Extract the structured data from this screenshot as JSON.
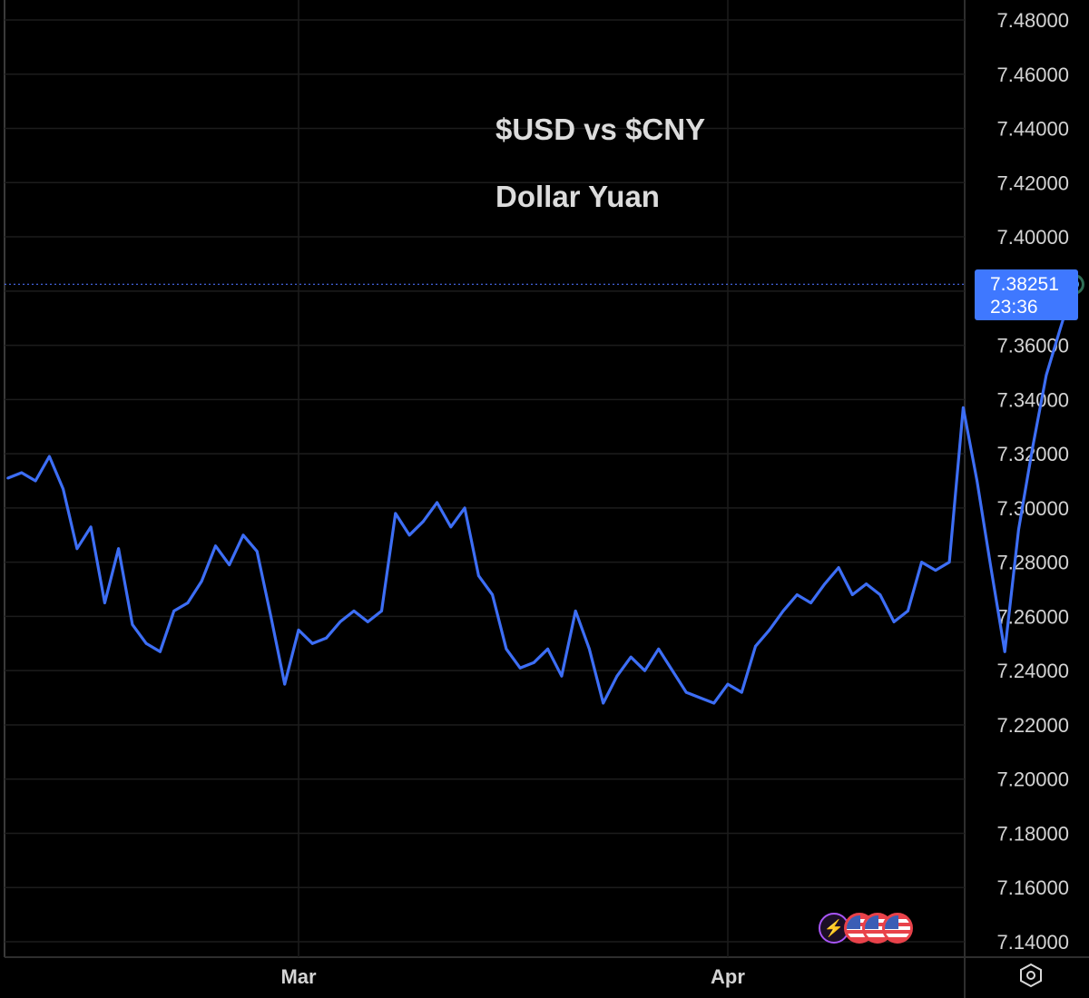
{
  "chart_data": {
    "type": "line",
    "title": "$USD vs $CNY",
    "subtitle": "Dollar Yuan",
    "ylim": [
      7.13,
      7.49
    ],
    "y_ticks": [
      "7.48000",
      "7.46000",
      "7.44000",
      "7.42000",
      "7.40000",
      "7.38000",
      "7.36000",
      "7.34000",
      "7.32000",
      "7.30000",
      "7.28000",
      "7.26000",
      "7.24000",
      "7.22000",
      "7.20000",
      "7.18000",
      "7.16000",
      "7.14000"
    ],
    "y_tick_values": [
      7.48,
      7.46,
      7.44,
      7.42,
      7.4,
      7.38,
      7.36,
      7.34,
      7.32,
      7.3,
      7.28,
      7.26,
      7.24,
      7.22,
      7.2,
      7.18,
      7.16,
      7.14
    ],
    "x_tick_labels": [
      "Mar",
      "Apr"
    ],
    "x_tick_dates": [
      "2025-03-01",
      "2025-04-01"
    ],
    "series": [
      {
        "color": "#3d6ef5",
        "points": [
          [
            "2025-02-08",
            7.311
          ],
          [
            "2025-02-09",
            7.313
          ],
          [
            "2025-02-10",
            7.31
          ],
          [
            "2025-02-11",
            7.319
          ],
          [
            "2025-02-12",
            7.307
          ],
          [
            "2025-02-13",
            7.285
          ],
          [
            "2025-02-14",
            7.293
          ],
          [
            "2025-02-15",
            7.265
          ],
          [
            "2025-02-16",
            7.285
          ],
          [
            "2025-02-17",
            7.257
          ],
          [
            "2025-02-18",
            7.25
          ],
          [
            "2025-02-19",
            7.247
          ],
          [
            "2025-02-20",
            7.262
          ],
          [
            "2025-02-21",
            7.265
          ],
          [
            "2025-02-22",
            7.273
          ],
          [
            "2025-02-23",
            7.286
          ],
          [
            "2025-02-24",
            7.279
          ],
          [
            "2025-02-25",
            7.29
          ],
          [
            "2025-02-26",
            7.284
          ],
          [
            "2025-02-27",
            7.26
          ],
          [
            "2025-02-28",
            7.235
          ],
          [
            "2025-03-01",
            7.255
          ],
          [
            "2025-03-02",
            7.25
          ],
          [
            "2025-03-03",
            7.252
          ],
          [
            "2025-03-04",
            7.258
          ],
          [
            "2025-03-05",
            7.262
          ],
          [
            "2025-03-06",
            7.258
          ],
          [
            "2025-03-07",
            7.262
          ],
          [
            "2025-03-08",
            7.298
          ],
          [
            "2025-03-09",
            7.29
          ],
          [
            "2025-03-10",
            7.295
          ],
          [
            "2025-03-11",
            7.302
          ],
          [
            "2025-03-12",
            7.293
          ],
          [
            "2025-03-13",
            7.3
          ],
          [
            "2025-03-14",
            7.275
          ],
          [
            "2025-03-15",
            7.268
          ],
          [
            "2025-03-16",
            7.248
          ],
          [
            "2025-03-17",
            7.241
          ],
          [
            "2025-03-18",
            7.243
          ],
          [
            "2025-03-19",
            7.248
          ],
          [
            "2025-03-20",
            7.238
          ],
          [
            "2025-03-21",
            7.262
          ],
          [
            "2025-03-22",
            7.248
          ],
          [
            "2025-03-23",
            7.228
          ],
          [
            "2025-03-24",
            7.238
          ],
          [
            "2025-03-25",
            7.245
          ],
          [
            "2025-03-26",
            7.24
          ],
          [
            "2025-03-27",
            7.248
          ],
          [
            "2025-03-28",
            7.24
          ],
          [
            "2025-03-29",
            7.232
          ],
          [
            "2025-03-30",
            7.23
          ],
          [
            "2025-03-31",
            7.228
          ],
          [
            "2025-04-01",
            7.235
          ],
          [
            "2025-04-02",
            7.232
          ],
          [
            "2025-04-03",
            7.249
          ],
          [
            "2025-04-04",
            7.255
          ],
          [
            "2025-04-05",
            7.262
          ],
          [
            "2025-04-06",
            7.268
          ],
          [
            "2025-04-07",
            7.265
          ],
          [
            "2025-04-08",
            7.272
          ],
          [
            "2025-04-09",
            7.278
          ],
          [
            "2025-04-10",
            7.268
          ],
          [
            "2025-04-11",
            7.272
          ],
          [
            "2025-04-12",
            7.268
          ],
          [
            "2025-04-13",
            7.258
          ],
          [
            "2025-04-14",
            7.262
          ],
          [
            "2025-04-15",
            7.28
          ],
          [
            "2025-04-16",
            7.277
          ],
          [
            "2025-04-17",
            7.28
          ],
          [
            "2025-04-18",
            7.337
          ],
          [
            "2025-04-19",
            7.31
          ],
          [
            "2025-04-20",
            7.278
          ],
          [
            "2025-04-21",
            7.247
          ],
          [
            "2025-04-22",
            7.292
          ],
          [
            "2025-04-23",
            7.322
          ],
          [
            "2025-04-24",
            7.349
          ],
          [
            "2025-04-25",
            7.366
          ],
          [
            "2025-04-26",
            7.38251
          ]
        ]
      }
    ],
    "last_value": "7.38251",
    "last_time": "23:36",
    "grid": true
  },
  "icons": {
    "settings": "settings-hexagon-icon",
    "event_markers": [
      "flash-event-icon",
      "us-flag-icon",
      "us-flag-icon",
      "us-flag-icon"
    ]
  }
}
